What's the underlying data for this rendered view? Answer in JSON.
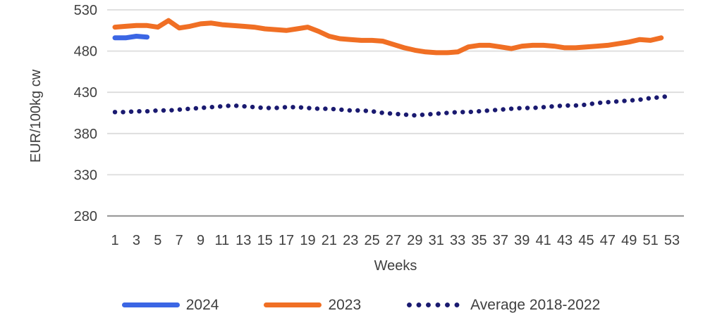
{
  "chart_data": {
    "type": "line",
    "title": "",
    "xlabel": "Weeks",
    "ylabel": "EUR/100kg cw",
    "xlim": [
      1,
      53
    ],
    "ylim": [
      280,
      530
    ],
    "x_ticks": [
      1,
      3,
      5,
      7,
      9,
      11,
      13,
      15,
      17,
      19,
      21,
      23,
      25,
      27,
      29,
      31,
      33,
      35,
      37,
      39,
      41,
      43,
      45,
      47,
      49,
      51,
      53
    ],
    "y_ticks": [
      280,
      330,
      380,
      430,
      480,
      530
    ],
    "grid": "horizontal",
    "legend_position": "bottom",
    "series": [
      {
        "name": "2024",
        "color": "#3b66e4",
        "style": "solid",
        "start_week": 1,
        "values": [
          496,
          496,
          498,
          497
        ]
      },
      {
        "name": "2023",
        "color": "#f06f24",
        "style": "solid",
        "start_week": 1,
        "values": [
          509,
          510,
          511,
          511,
          509,
          517,
          508,
          510,
          513,
          514,
          512,
          511,
          510,
          509,
          507,
          506,
          505,
          507,
          509,
          504,
          498,
          495,
          494,
          493,
          493,
          492,
          488,
          484,
          481,
          479,
          478,
          478,
          479,
          485,
          487,
          487,
          485,
          483,
          486,
          487,
          487,
          486,
          484,
          484,
          485,
          486,
          487,
          489,
          491,
          494,
          493,
          496
        ]
      },
      {
        "name": "Average 2018-2022",
        "color": "#1a1a70",
        "style": "dotted",
        "start_week": 1,
        "values": [
          406,
          406,
          407,
          407,
          408,
          408,
          409,
          410,
          411,
          412,
          413,
          414,
          413,
          412,
          411,
          411,
          412,
          412,
          411,
          410,
          410,
          409,
          408,
          408,
          407,
          405,
          404,
          403,
          402,
          403,
          404,
          405,
          406,
          406,
          407,
          408,
          409,
          410,
          411,
          411,
          412,
          413,
          414,
          414,
          415,
          417,
          418,
          419,
          420,
          421,
          423,
          424,
          426
        ]
      }
    ],
    "colors": {
      "axis_text": "#3f3f3f",
      "gridline": "#dcdcdc",
      "axis_line": "#9b9b9b",
      "background": "#ffffff"
    }
  }
}
